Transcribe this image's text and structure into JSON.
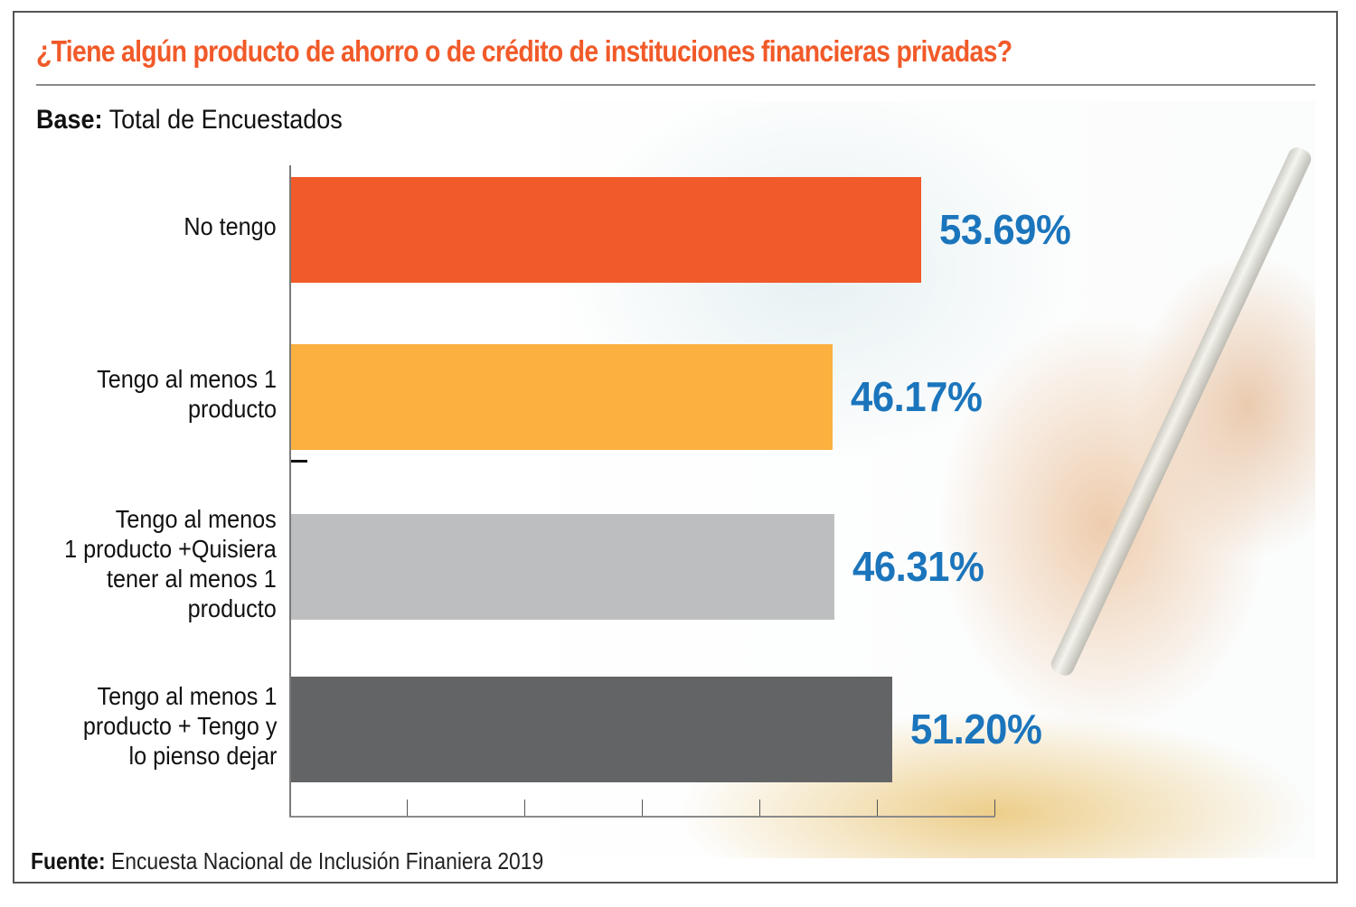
{
  "title": "¿Tiene algún producto de ahorro o de crédito de instituciones financieras privadas?",
  "base": {
    "label": "Base:",
    "text": "Total de Encuestados"
  },
  "source": {
    "label": "Fuente:",
    "text": "Encuesta Nacional de Inclusión Finaniera 2019"
  },
  "chart_data": {
    "type": "bar",
    "orientation": "horizontal",
    "title": "¿Tiene algún producto de ahorro o de crédito de instituciones financieras privadas?",
    "subtitle": "Base: Total de Encuestados",
    "categories": [
      "No tengo",
      "Tengo al menos 1\nproducto",
      "Tengo al menos\n1 producto +Quisiera\ntener al menos 1\nproducto",
      "Tengo al menos 1\nproducto + Tengo y\nlo pienso dejar"
    ],
    "values": [
      53.69,
      46.17,
      46.31,
      51.2
    ],
    "value_labels": [
      "53.69%",
      "46.17%",
      "46.31%",
      "51.20%"
    ],
    "colors": [
      "#f15a29",
      "#fbb040",
      "#bcbec0",
      "#636466"
    ],
    "value_label_color": "#1b75bc",
    "xlabel": "",
    "ylabel": "",
    "xlim": [
      0,
      60
    ],
    "x_ticks": [
      0,
      10,
      20,
      30,
      40,
      50,
      60
    ],
    "x_tick_labels_shown": false,
    "grid": false,
    "legend": "none",
    "source": "Fuente: Encuesta Nacional de Inclusión Finaniera 2019"
  }
}
